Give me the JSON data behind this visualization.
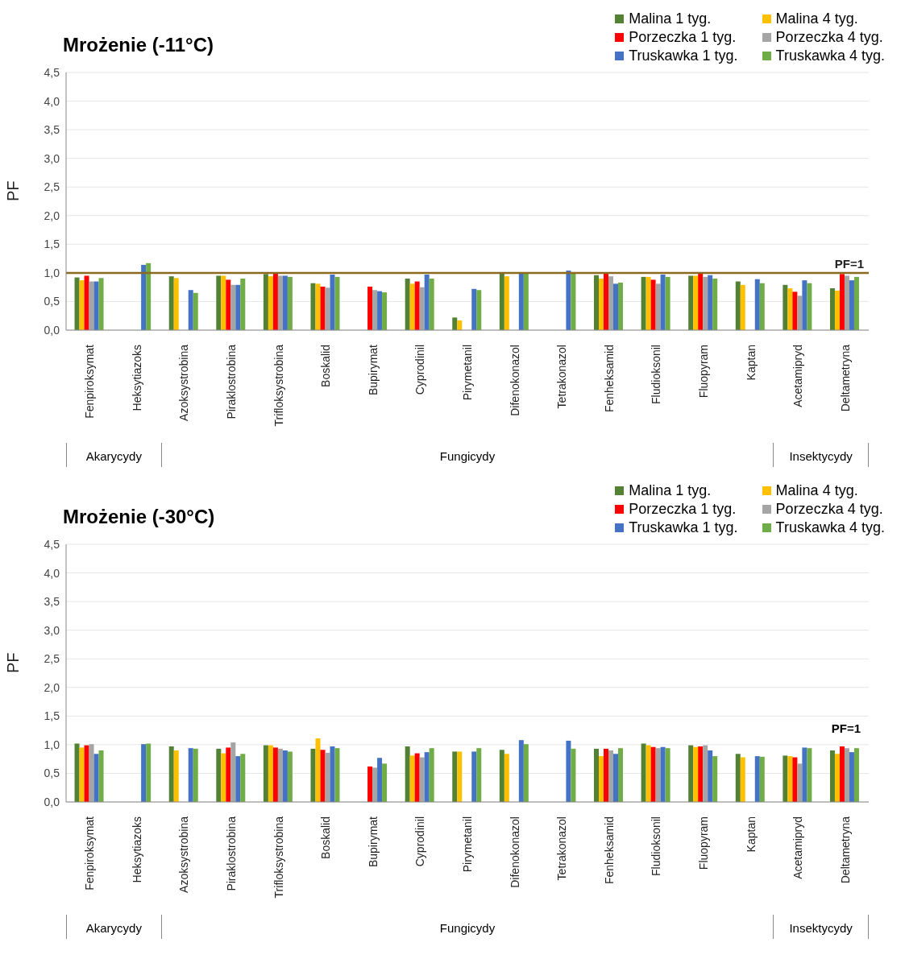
{
  "chart_data": [
    {
      "type": "bar",
      "title": "Mrożenie (-11°C)",
      "ylabel": "PF",
      "grid": "y",
      "legend": "top right",
      "categories": [
        "Fenpiroksymat",
        "Heksytiazoks",
        "Azoksystrobina",
        "Piraklostrobina",
        "Trifloksystrobina",
        "Boskalid",
        "Bupirymat",
        "Cyprodinil",
        "Pirymetanil",
        "Difenokonazol",
        "Tetrakonazol",
        "Fenheksamid",
        "Fludioksonil",
        "Fluopyram",
        "Kaptan",
        "Acetamipryd",
        "Deltametryna"
      ],
      "series": [
        {
          "name": "Malina 1 tyg.",
          "color": "#548235",
          "values": [
            0.92,
            null,
            0.94,
            0.95,
            0.98,
            0.82,
            null,
            0.9,
            0.22,
            0.99,
            null,
            0.96,
            0.93,
            0.95,
            0.85,
            0.79,
            0.73
          ]
        },
        {
          "name": "Malina 4 tyg.",
          "color": "#ffc000",
          "values": [
            0.87,
            null,
            0.91,
            0.95,
            0.94,
            0.81,
            null,
            0.81,
            0.17,
            0.94,
            null,
            0.9,
            0.93,
            0.95,
            0.79,
            0.73,
            0.69
          ]
        },
        {
          "name": "Porzeczka 1 tyg.",
          "color": "#ff0000",
          "values": [
            0.95,
            null,
            null,
            0.88,
            0.99,
            0.76,
            0.76,
            0.85,
            null,
            null,
            null,
            1.0,
            0.88,
            1.01,
            null,
            0.67,
            0.98
          ]
        },
        {
          "name": "Porzeczka 4 tyg.",
          "color": "#a5a5a5",
          "values": [
            0.85,
            null,
            null,
            0.79,
            0.95,
            0.74,
            0.7,
            0.75,
            null,
            null,
            null,
            0.94,
            0.81,
            0.93,
            null,
            0.6,
            0.95
          ]
        },
        {
          "name": "Truskawka 1 tyg.",
          "color": "#4472c4",
          "values": [
            0.85,
            1.14,
            0.7,
            0.79,
            0.95,
            0.97,
            0.68,
            0.97,
            0.72,
            1.01,
            1.04,
            0.81,
            0.97,
            0.96,
            0.89,
            0.87,
            0.87
          ]
        },
        {
          "name": "Truskawka 4 tyg.",
          "color": "#70ad47",
          "values": [
            0.91,
            1.17,
            0.65,
            0.9,
            0.93,
            0.93,
            0.66,
            0.9,
            0.7,
            1.0,
            0.99,
            0.83,
            0.93,
            0.9,
            0.82,
            0.82,
            0.93
          ]
        }
      ],
      "ylim": [
        0,
        4.5
      ],
      "yticks": [
        {
          "value": 0,
          "label": "0,0"
        },
        {
          "value": 0.5,
          "label": "0,5"
        },
        {
          "value": 1,
          "label": "1,0"
        },
        {
          "value": 1.5,
          "label": "1,5"
        },
        {
          "value": 2,
          "label": "2,0"
        },
        {
          "value": 2.5,
          "label": "2,5"
        },
        {
          "value": 3,
          "label": "3,0"
        },
        {
          "value": 3.5,
          "label": "3,5"
        },
        {
          "value": 4,
          "label": "4,0"
        },
        {
          "value": 4.5,
          "label": "4,5"
        }
      ],
      "ref_lines": [
        {
          "axis": "y",
          "value": 1,
          "label": "PF=1",
          "color": "#8b6a1f"
        }
      ],
      "annotations": [
        "Akarycydy",
        "Fungicydy",
        "Insektycydy"
      ]
    },
    {
      "type": "bar",
      "title": "Mrożenie (-30°C)",
      "ylabel": "PF",
      "grid": "y",
      "legend": "top right",
      "categories": [
        "Fenpiroksymat",
        "Heksytiazoks",
        "Azoksystrobina",
        "Piraklostrobina",
        "Trifloksystrobina",
        "Boskalid",
        "Bupirymat",
        "Cyprodinil",
        "Pirymetanil",
        "Difenokonazol",
        "Tetrakonazol",
        "Fenheksamid",
        "Fludioksonil",
        "Fluopyram",
        "Kaptan",
        "Acetamipryd",
        "Deltametryna"
      ],
      "series": [
        {
          "name": "Malina 1 tyg.",
          "color": "#548235",
          "values": [
            1.02,
            null,
            0.97,
            0.93,
            0.99,
            0.93,
            null,
            0.97,
            0.88,
            0.91,
            null,
            0.93,
            1.02,
            0.99,
            0.84,
            0.81,
            0.9
          ]
        },
        {
          "name": "Malina 4 tyg.",
          "color": "#ffc000",
          "values": [
            0.95,
            null,
            0.9,
            0.85,
            0.99,
            1.11,
            null,
            0.81,
            0.88,
            0.84,
            null,
            0.8,
            0.99,
            0.96,
            0.78,
            0.8,
            0.84
          ]
        },
        {
          "name": "Porzeczka 1 tyg.",
          "color": "#ff0000",
          "values": [
            0.99,
            null,
            null,
            0.95,
            0.95,
            0.91,
            0.62,
            0.85,
            null,
            null,
            null,
            0.93,
            0.96,
            0.97,
            null,
            0.78,
            0.97
          ]
        },
        {
          "name": "Porzeczka 4 tyg.",
          "color": "#a5a5a5",
          "values": [
            1.01,
            null,
            null,
            1.04,
            0.93,
            0.86,
            0.6,
            0.78,
            null,
            null,
            null,
            0.9,
            0.94,
            0.99,
            null,
            0.67,
            0.94
          ]
        },
        {
          "name": "Truskawka 1 tyg.",
          "color": "#4472c4",
          "values": [
            0.84,
            1.01,
            0.94,
            0.8,
            0.9,
            0.97,
            0.77,
            0.87,
            0.88,
            1.08,
            1.07,
            0.84,
            0.96,
            0.9,
            0.8,
            0.95,
            0.87
          ]
        },
        {
          "name": "Truskawka 4 tyg.",
          "color": "#70ad47",
          "values": [
            0.9,
            1.02,
            0.93,
            0.84,
            0.88,
            0.94,
            0.67,
            0.94,
            0.94,
            1.01,
            0.93,
            0.94,
            0.94,
            0.8,
            0.79,
            0.94,
            0.94
          ]
        }
      ],
      "ylim": [
        0,
        4.5
      ],
      "yticks": [
        {
          "value": 0,
          "label": "0,0"
        },
        {
          "value": 0.5,
          "label": "0,5"
        },
        {
          "value": 1,
          "label": "1,0"
        },
        {
          "value": 1.5,
          "label": "1,5"
        },
        {
          "value": 2,
          "label": "2,0"
        },
        {
          "value": 2.5,
          "label": "2,5"
        },
        {
          "value": 3,
          "label": "3,0"
        },
        {
          "value": 3.5,
          "label": "3,5"
        },
        {
          "value": 4,
          "label": "4,0"
        },
        {
          "value": 4.5,
          "label": "4,5"
        }
      ],
      "annotations": [
        "PF=1",
        "Akarycydy",
        "Fungicydy",
        "Insektycydy"
      ]
    }
  ]
}
